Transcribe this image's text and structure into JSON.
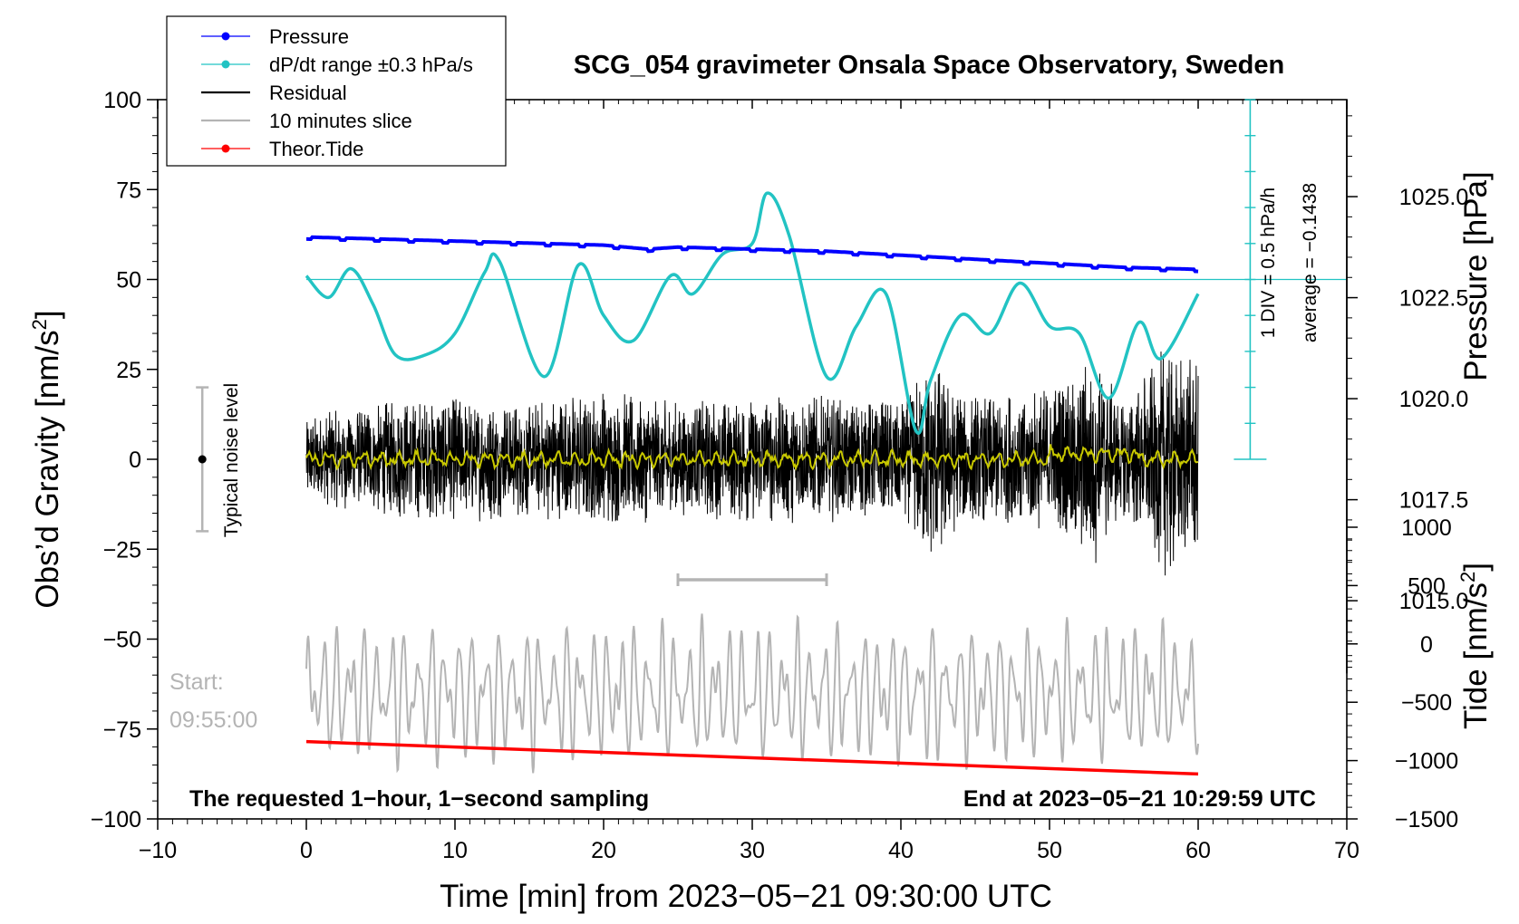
{
  "chart_data": {
    "type": "line",
    "title": "SCG_054 gravimeter Onsala Space Observatory, Sweden",
    "xlabel": "Time [min] from 2023−05−21 09:30:00 UTC",
    "xlim": [
      -10,
      70
    ],
    "x_ticks": [
      -10,
      0,
      10,
      20,
      30,
      40,
      50,
      60,
      70
    ],
    "x_tick_labels": [
      "−10",
      "0",
      "10",
      "20",
      "30",
      "40",
      "50",
      "60",
      "70"
    ],
    "left_axis": {
      "label_prefix": "Obs’d Gravity [nm/s",
      "label_sup": "2",
      "label_suffix": "]",
      "ylim": [
        -100,
        100
      ],
      "ticks": [
        100,
        75,
        50,
        25,
        0,
        -25,
        -50,
        -75,
        -100
      ],
      "tick_labels": [
        "100",
        "75",
        "50",
        "25",
        "0",
        "−25",
        "−50",
        "−75",
        "−100"
      ]
    },
    "right_pressure_axis": {
      "label": "Pressure [hPa]",
      "ylim_at_gravity": [
        1009.6,
        1027.4
      ],
      "ticks": [
        1025.0,
        1022.5,
        1020.0,
        1017.5,
        1015.0
      ],
      "tick_labels": [
        "1025.0",
        "1022.5",
        "1020.0",
        "1017.5",
        "1015.0"
      ]
    },
    "right_tide_axis": {
      "label_prefix": "Tide [nm/s",
      "label_sup": "2",
      "label_suffix": "]",
      "ticks": [
        1000,
        500,
        0,
        -500,
        -1000,
        -1500
      ],
      "tick_labels": [
        "1000",
        "500",
        "0",
        "−500",
        "−1000",
        "−1500"
      ]
    },
    "dpdt_scale": {
      "div_label": "1 DIV = 0.5 hPa/h",
      "average_label": "average = −0.1438",
      "x_minute": 63.5,
      "reference_gravity": 50
    },
    "noise_marker": {
      "label": "Typical noise level",
      "x_minute": -7.0,
      "range": [
        -20,
        20
      ],
      "center": 0
    },
    "slice_marker": {
      "x_start": 25,
      "x_end": 35,
      "y_gravity": -33.5
    },
    "series": [
      {
        "name": "Pressure",
        "unit": "hPa",
        "color": "#0000ff",
        "x": [
          0,
          5,
          10,
          15,
          20,
          23,
          25,
          30,
          35,
          40,
          45,
          50,
          55,
          60
        ],
        "values": [
          1024.0,
          1023.95,
          1023.9,
          1023.85,
          1023.8,
          1023.7,
          1023.75,
          1023.7,
          1023.65,
          1023.55,
          1023.45,
          1023.35,
          1023.25,
          1023.2
        ]
      },
      {
        "name": "dP/dt range ±0.3 hPa/s",
        "unit": "gravity-axis units",
        "color": "#22c3c3",
        "x": [
          0,
          1.5,
          3,
          4.5,
          6,
          8,
          10,
          12,
          13,
          16,
          18.3,
          20,
          22,
          24.5,
          26,
          28,
          30,
          31,
          32.5,
          35,
          37,
          39,
          41,
          42,
          44,
          46,
          48,
          50,
          52,
          54,
          56,
          57.5,
          60
        ],
        "values": [
          51,
          45,
          53,
          43,
          29,
          29,
          35,
          52,
          55,
          23,
          54,
          40,
          33,
          51,
          46,
          57,
          60,
          74,
          62,
          23,
          37,
          46,
          8,
          22,
          40,
          35,
          49,
          37,
          35,
          17,
          38,
          28,
          46
        ]
      },
      {
        "name": "Residual",
        "unit": "nm/s²",
        "color": "#000000",
        "x": [
          0,
          60
        ],
        "values": [
          0,
          0
        ],
        "amplitude_envelope": {
          "x": [
            0,
            5,
            10,
            15,
            20,
            25,
            30,
            35,
            40,
            42,
            45,
            50,
            53,
            55,
            58,
            60
          ],
          "amplitude": [
            12,
            16,
            18,
            16,
            20,
            16,
            18,
            18,
            16,
            28,
            18,
            20,
            30,
            16,
            34,
            26
          ]
        }
      },
      {
        "name": "10 minutes slice",
        "unit": "nm/s² (tide axis)",
        "color": "#b4b4b4",
        "x": [
          0,
          60
        ],
        "center_gravity": -65,
        "amplitude_gravity": 20
      },
      {
        "name": "Theor.Tide",
        "unit": "nm/s²",
        "color": "#ff0000",
        "x": [
          0,
          60
        ],
        "values_gravity": [
          -78.5,
          -87.5
        ]
      },
      {
        "name": "Smoothed residual",
        "unit": "nm/s²",
        "color": "#c8c800",
        "x": [
          0,
          60
        ],
        "values": [
          0,
          0
        ]
      }
    ],
    "legend": {
      "placement": "top-left",
      "entries": [
        {
          "label": "Pressure",
          "color": "#0000ff",
          "marker": true
        },
        {
          "label": "dP/dt range ±0.3 hPa/s",
          "color": "#22c3c3",
          "marker": true
        },
        {
          "label": "Residual",
          "color": "#000000",
          "marker": false
        },
        {
          "label": "10 minutes slice",
          "color": "#b4b4b4",
          "marker": false
        },
        {
          "label": "Theor.Tide",
          "color": "#ff0000",
          "marker": true
        }
      ]
    },
    "annotations": {
      "bottom_left": "The requested 1−hour, 1−second sampling",
      "bottom_right": "End at 2023−05−21 10:29:59 UTC",
      "start_label": "Start:",
      "start_time": "09:55:00"
    }
  }
}
